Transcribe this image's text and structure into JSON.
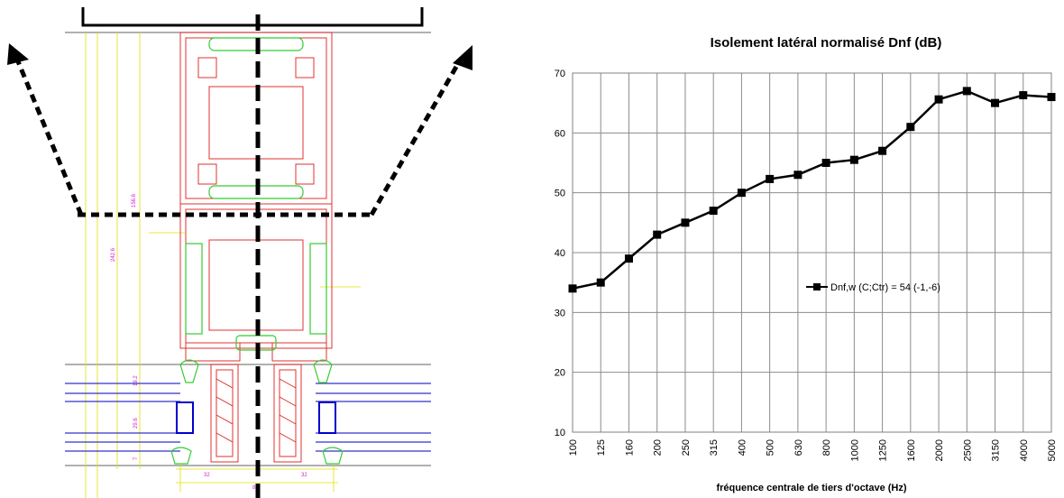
{
  "drawing": {
    "dimension_labels": [
      "156.6",
      "242.6",
      "19.2",
      "29.6",
      "7",
      "32",
      "32",
      "84"
    ]
  },
  "chart_data": {
    "type": "line",
    "title": "Isolement latéral normalisé Dnf (dB)",
    "xlabel": "fréquence centrale de tiers d'octave (Hz)",
    "ylabel": "",
    "categories": [
      "100",
      "125",
      "160",
      "200",
      "250",
      "315",
      "400",
      "500",
      "630",
      "800",
      "1000",
      "1250",
      "1600",
      "2000",
      "2500",
      "3150",
      "4000",
      "5000"
    ],
    "ylim": [
      10,
      70
    ],
    "yticks": [
      10,
      20,
      30,
      40,
      50,
      60,
      70
    ],
    "grid": true,
    "legend_position": "center-right",
    "series": [
      {
        "name": "Dnf,w (C;Ctr) = 54 (-1,-6)",
        "values": [
          34,
          35,
          39,
          43,
          45,
          47,
          50,
          52.3,
          53,
          55,
          55.5,
          57,
          61,
          65.6,
          67,
          65,
          66.3,
          66
        ],
        "color": "#000000",
        "marker": "square"
      }
    ]
  }
}
